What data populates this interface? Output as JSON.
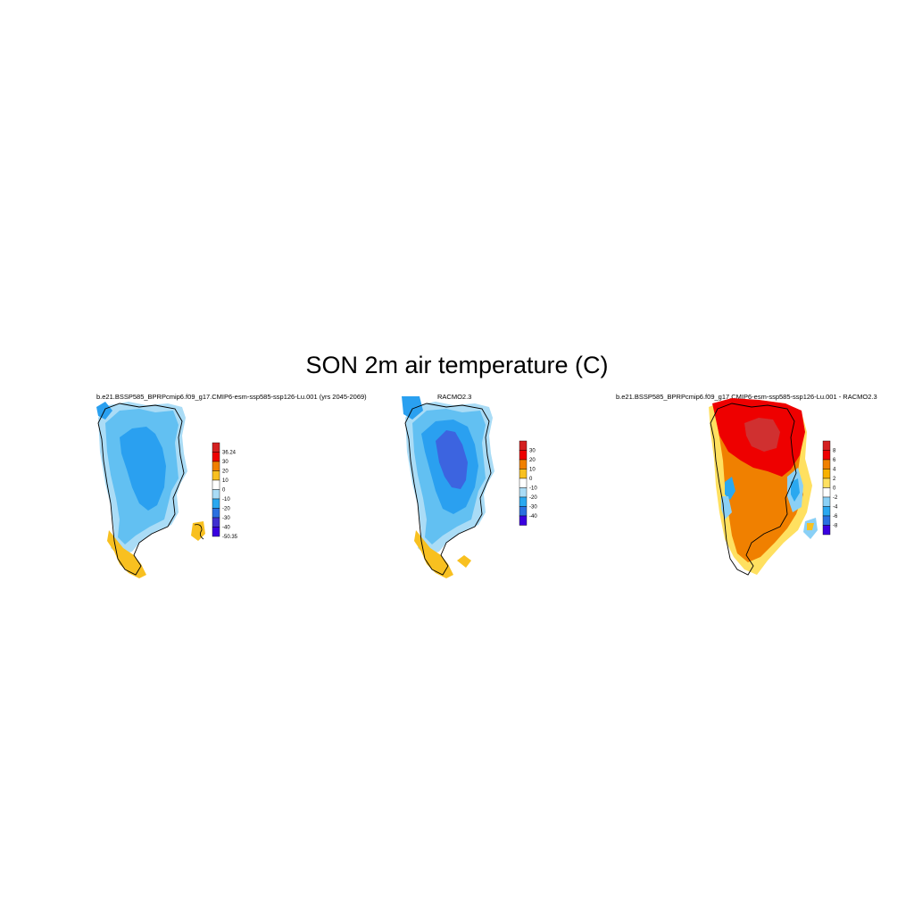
{
  "title": "SON 2m air temperature (C)",
  "panels": [
    {
      "title": "b.e21.BSSP585_BPRPcmip6.f09_g17.CMIP6-esm-ssp585-ssp126-Lu.001 (yrs 2045-2069)",
      "colorbar": {
        "labels": [
          "36.24",
          "30",
          "20",
          "10",
          "0",
          "-10",
          "-20",
          "-30",
          "-40",
          "-50.35"
        ],
        "colors": [
          "#d42020",
          "#ee0000",
          "#f08000",
          "#f8c020",
          "#ffffff",
          "#aadcf6",
          "#2aa8f0",
          "#2a70e0",
          "#4030d0",
          "#3a00e0"
        ]
      }
    },
    {
      "title": "RACMO2.3",
      "colorbar": {
        "labels": [
          "30",
          "20",
          "10",
          "0",
          "-10",
          "-20",
          "-30",
          "-40"
        ],
        "colors": [
          "#d42020",
          "#ee0000",
          "#f08000",
          "#f8c020",
          "#ffffff",
          "#aadcf6",
          "#2aa8f0",
          "#2a70e0",
          "#3a00e0"
        ]
      }
    },
    {
      "title": "b.e21.BSSP585_BPRPcmip6.f09_g17.CMIP6-esm-ssp585-ssp126-Lu.001 - RACMO2.3",
      "colorbar": {
        "labels": [
          "8",
          "6",
          "4",
          "2",
          "0",
          "-2",
          "-4",
          "-6",
          "-8"
        ],
        "colors": [
          "#d42020",
          "#ee0000",
          "#f08000",
          "#f8b000",
          "#ffe060",
          "#ffffff",
          "#8ad0f6",
          "#2aa8f0",
          "#2a70e0",
          "#3a00e0"
        ]
      }
    }
  ]
}
